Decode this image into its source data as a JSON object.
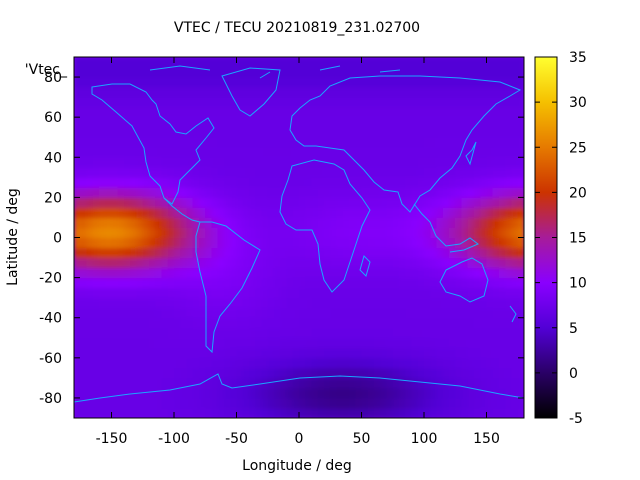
{
  "chart_data": {
    "type": "heatmap",
    "title": "VTEC / TECU 20210819_231.02700",
    "xlabel": "Longitude / deg",
    "ylabel": "Latitude / deg",
    "xlim": [
      -180,
      180
    ],
    "ylim": [
      -90,
      90
    ],
    "x_ticks": [
      -150,
      -100,
      -50,
      0,
      50,
      100,
      150
    ],
    "y_ticks": [
      -80,
      -60,
      -40,
      -20,
      0,
      20,
      40,
      60,
      80
    ],
    "legend_label": "'Vtec_",
    "colorbar": {
      "range": [
        -5,
        35
      ],
      "ticks": [
        -5,
        0,
        5,
        10,
        15,
        20,
        25,
        30,
        35
      ],
      "colors": [
        "#000000",
        "#2a0066",
        "#5200d6",
        "#8a00ff",
        "#a71c99",
        "#cc3300",
        "#e67a00",
        "#f5c000",
        "#ffff30"
      ]
    },
    "overlay": "coastlines",
    "features": [
      {
        "region": "equatorial anomaly, Pacific (lon -180 to -90, lat -20 to 20)",
        "peak_value": 27
      },
      {
        "region": "equatorial anomaly, West Pacific (lon 100 to 180, lat -20 to 20)",
        "peak_value": 27
      },
      {
        "region": "Antarctic low (lon 0 to 80, lat -75)",
        "min_value": 1
      },
      {
        "region": "background",
        "value": 7
      }
    ]
  }
}
